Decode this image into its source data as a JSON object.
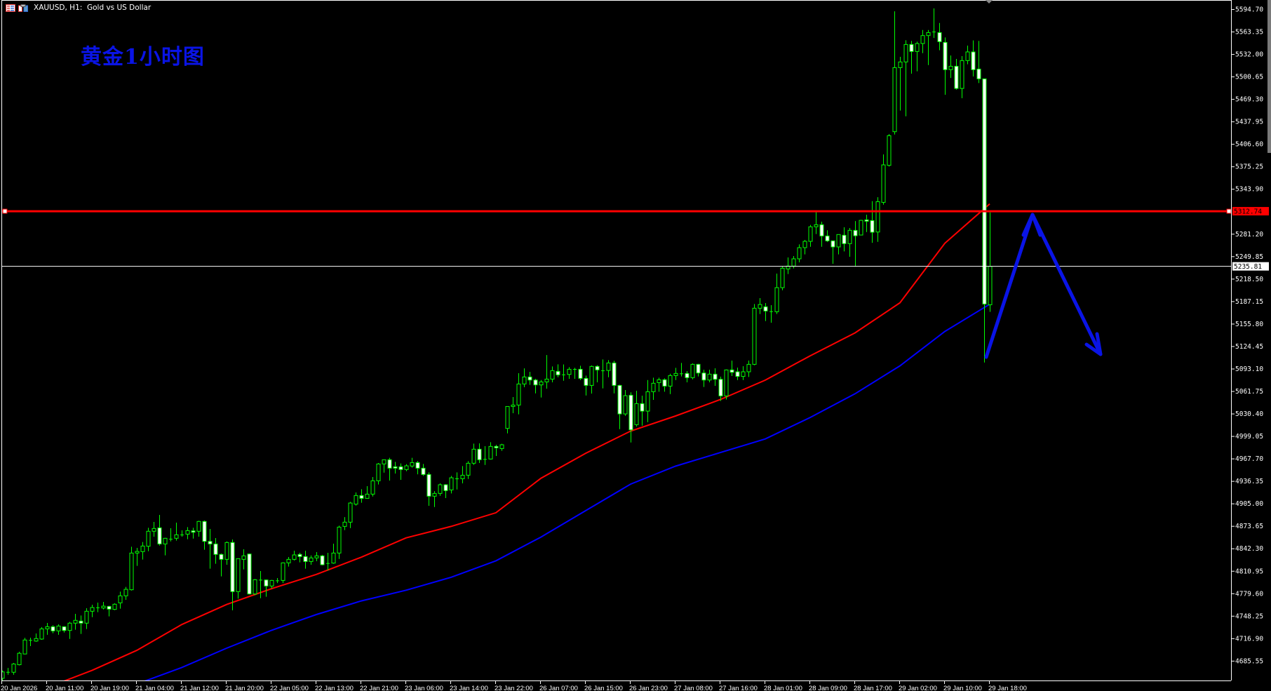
{
  "header": {
    "title": "XAUUSD, H1:  Gold vs US Dollar",
    "icons": [
      "chart-list-icon",
      "chart-window-icon"
    ]
  },
  "annotation": {
    "text": "黄金1小时图",
    "color": "#0a14e6"
  },
  "colors": {
    "background": "#000000",
    "candle_outline": "#00ff00",
    "bull_fill": "#000000",
    "bear_fill": "#ffffff",
    "ma_fast": "#ff0000",
    "ma_slow": "#0000ff",
    "hline": "#ff0000",
    "bid_line": "#ffffff",
    "drawing": "#0a14e6"
  },
  "price_axis": {
    "labels": [
      "5594.70",
      "5563.35",
      "5532.00",
      "5500.65",
      "5469.30",
      "5437.95",
      "5406.60",
      "5375.25",
      "5343.90",
      "5312.74",
      "5281.20",
      "5249.85",
      "5235.81",
      "5218.50",
      "5187.15",
      "5155.80",
      "5124.45",
      "5093.10",
      "5061.75",
      "5030.40",
      "4999.05",
      "4967.70",
      "4936.35",
      "4905.00",
      "4873.65",
      "4842.30",
      "4810.95",
      "4779.60",
      "4748.25",
      "4716.90",
      "4685.55"
    ],
    "hline_label": "5312.74",
    "bid_label": "5235.81"
  },
  "chart_data": {
    "type": "candlestick",
    "title": "",
    "symbol": "XAUUSD",
    "timeframe": "H1",
    "ylim": [
      4654,
      5608
    ],
    "y_ticks": [
      5594.7,
      5563.35,
      5532.0,
      5500.65,
      5469.3,
      5437.95,
      5406.6,
      5375.25,
      5343.9,
      5312.55,
      5281.2,
      5249.85,
      5218.5,
      5187.15,
      5155.8,
      5124.45,
      5093.1,
      5061.75,
      5030.4,
      4999.05,
      4967.7,
      4936.35,
      4905.0,
      4873.65,
      4842.3,
      4810.95,
      4779.6,
      4748.25,
      4716.9,
      4685.55
    ],
    "x_tick_labels": [
      "20 Jan 2026",
      "20 Jan 11:00",
      "20 Jan 19:00",
      "21 Jan 04:00",
      "21 Jan 12:00",
      "21 Jan 20:00",
      "22 Jan 05:00",
      "22 Jan 13:00",
      "22 Jan 21:00",
      "23 Jan 06:00",
      "23 Jan 14:00",
      "23 Jan 22:00",
      "26 Jan 07:00",
      "26 Jan 15:00",
      "26 Jan 23:00",
      "27 Jan 08:00",
      "27 Jan 16:00",
      "28 Jan 01:00",
      "28 Jan 09:00",
      "28 Jan 17:00",
      "29 Jan 02:00",
      "29 Jan 10:00",
      "29 Jan 18:00"
    ],
    "bars_per_x_tick": 8,
    "ohlc_fields": [
      "open",
      "high",
      "low",
      "close"
    ],
    "ohlc": [
      [
        4661,
        4672,
        4658,
        4670
      ],
      [
        4670,
        4675.5,
        4666,
        4670
      ],
      [
        4669.5,
        4682.5,
        4666,
        4681
      ],
      [
        4680,
        4698,
        4679,
        4696
      ],
      [
        4695,
        4717.5,
        4694.5,
        4714.5
      ],
      [
        4714,
        4717.7,
        4706,
        4714.5
      ],
      [
        4713,
        4723.6,
        4712,
        4716.5
      ],
      [
        4715.8,
        4732.5,
        4714.8,
        4730
      ],
      [
        4730,
        4738.3,
        4721.7,
        4733
      ],
      [
        4733,
        4735,
        4724,
        4727.2
      ],
      [
        4727.2,
        4736.3,
        4721.7,
        4734
      ],
      [
        4733,
        4733.7,
        4724.9,
        4727.8
      ],
      [
        4727.8,
        4739.7,
        4716,
        4738
      ],
      [
        4738,
        4751,
        4728.8,
        4741.9
      ],
      [
        4740.9,
        4748.7,
        4723,
        4738
      ],
      [
        4738,
        4758.8,
        4729.8,
        4754.6
      ],
      [
        4754.6,
        4763.7,
        4746.4,
        4759.8
      ],
      [
        4759.5,
        4766.6,
        4753.3,
        4760
      ],
      [
        4759.1,
        4767.6,
        4757.2,
        4761.7
      ],
      [
        4761.4,
        4762,
        4747.4,
        4757.5
      ],
      [
        4757.2,
        4765.7,
        4756.2,
        4764.4
      ],
      [
        4766.3,
        4782,
        4758.2,
        4776.1
      ],
      [
        4776.1,
        4788.5,
        4770.6,
        4785.2
      ],
      [
        4784.6,
        4844.6,
        4783.6,
        4835.8
      ],
      [
        4835.8,
        4843,
        4817.9,
        4838.1
      ],
      [
        4837.8,
        4851.2,
        4826.7,
        4845.6
      ],
      [
        4845.3,
        4871,
        4838.4,
        4866.2
      ],
      [
        4866.2,
        4879.2,
        4858.7,
        4870.1
      ],
      [
        4871,
        4889,
        4846.3,
        4848.5
      ],
      [
        4848.5,
        4857,
        4832.6,
        4856.4
      ],
      [
        4855.7,
        4870.4,
        4852.1,
        4855.7
      ],
      [
        4856.4,
        4878.2,
        4853.1,
        4861.3
      ],
      [
        4861.6,
        4867.5,
        4858.7,
        4861.6
      ],
      [
        4862.2,
        4872,
        4855.1,
        4867.1
      ],
      [
        4866.8,
        4871,
        4856,
        4864.8
      ],
      [
        4866.2,
        4880.8,
        4858.7,
        4879.9
      ],
      [
        4879.9,
        4881.2,
        4840.4,
        4852.1
      ],
      [
        4852.1,
        4869.4,
        4814,
        4848.5
      ],
      [
        4848.5,
        4856.7,
        4820.8,
        4833.9
      ],
      [
        4833.9,
        4835.2,
        4803.2,
        4827
      ],
      [
        4827,
        4852.1,
        4819.5,
        4850.5
      ],
      [
        4850.5,
        4854.7,
        4755.9,
        4782
      ],
      [
        4782,
        4828.3,
        4772.2,
        4828
      ],
      [
        4827,
        4841,
        4813,
        4831.9
      ],
      [
        4834.5,
        4835.2,
        4778,
        4778.7
      ],
      [
        4778.7,
        4799.6,
        4777.1,
        4798.6
      ],
      [
        4798.6,
        4810.7,
        4772.8,
        4798.6
      ],
      [
        4798.3,
        4799,
        4774.8,
        4789.8
      ],
      [
        4789.8,
        4798.3,
        4786.2,
        4797.6
      ],
      [
        4797.6,
        4800.9,
        4794,
        4797.6
      ],
      [
        4797.6,
        4822.8,
        4794,
        4822.1
      ],
      [
        4822.1,
        4830.3,
        4816.9,
        4827
      ],
      [
        4827,
        4839.1,
        4825.4,
        4833.2
      ],
      [
        4833.9,
        4836.1,
        4822.8,
        4830.9
      ],
      [
        4830.9,
        4839.1,
        4814,
        4824
      ],
      [
        4824,
        4832.5,
        4819.5,
        4829
      ],
      [
        4829,
        4837.1,
        4824.4,
        4831.9
      ],
      [
        4831.9,
        4833.2,
        4818.8,
        4819.5
      ],
      [
        4821.8,
        4836.1,
        4811.3,
        4821.8
      ],
      [
        4821.8,
        4848.9,
        4820.8,
        4835.8
      ],
      [
        4835.8,
        4874,
        4827.6,
        4872
      ],
      [
        4873,
        4886,
        4867.8,
        4878.9
      ],
      [
        4878.9,
        4907.2,
        4870.7,
        4905.6
      ],
      [
        4904,
        4920.3,
        4902,
        4916.1
      ],
      [
        4916.1,
        4924.9,
        4906,
        4912.1
      ],
      [
        4912.1,
        4929.1,
        4911.5,
        4918
      ],
      [
        4918,
        4941.8,
        4914.7,
        4936.6
      ],
      [
        4936.6,
        4961.4,
        4931.4,
        4960.1
      ],
      [
        4960.1,
        4966,
        4948,
        4966
      ],
      [
        4966,
        4968.6,
        4937,
        4954.2
      ],
      [
        4956.2,
        4963,
        4946.7,
        4954.2
      ],
      [
        4956.2,
        4960.8,
        4937.9,
        4952.3
      ],
      [
        4952.3,
        4959.8,
        4950,
        4957.5
      ],
      [
        4957.2,
        4968.6,
        4954.9,
        4962
      ],
      [
        4962,
        4964.3,
        4945.7,
        4954.2
      ],
      [
        4954.2,
        4960.1,
        4943.5,
        4945.4
      ],
      [
        4945.4,
        4948.4,
        4901.7,
        4915.1
      ],
      [
        4915.1,
        4922.2,
        4900,
        4919
      ],
      [
        4919,
        4933,
        4915.7,
        4931.1
      ],
      [
        4931.1,
        4932,
        4912.5,
        4922.9
      ],
      [
        4923.9,
        4943.5,
        4919,
        4940.8
      ],
      [
        4939.9,
        4948.4,
        4924.5,
        4939.9
      ],
      [
        4939.5,
        4957.2,
        4933,
        4944.4
      ],
      [
        4944.4,
        4964,
        4939.2,
        4961.1
      ],
      [
        4961.1,
        4988.5,
        4958.8,
        4980.7
      ],
      [
        4980.7,
        4988.8,
        4961.4,
        4966
      ],
      [
        4967,
        4984.9,
        4958.8,
        4967
      ],
      [
        4967,
        4990.4,
        4966.3,
        4984.6
      ],
      [
        4984.6,
        4986.9,
        4971.2,
        4982.6
      ],
      [
        4981.6,
        4988.2,
        4978.4,
        4986.9
      ],
      [
        5009.7,
        5040.3,
        5002.8,
        5040.3
      ],
      [
        5040.3,
        5053.4,
        5030.9,
        5042.3
      ],
      [
        5042.3,
        5086.7,
        5029.3,
        5071.7
      ],
      [
        5071.7,
        5093.5,
        5067.1,
        5081.5
      ],
      [
        5081.5,
        5088.6,
        5070.4,
        5077.2
      ],
      [
        5077.2,
        5078.9,
        5058.6,
        5070.4
      ],
      [
        5070.4,
        5077.2,
        5052.8,
        5074.6
      ],
      [
        5074.6,
        5112.1,
        5065.2,
        5078.5
      ],
      [
        5078.5,
        5096.2,
        5074,
        5090.3
      ],
      [
        5089.3,
        5099.1,
        5081.1,
        5084.4
      ],
      [
        5085,
        5099,
        5076.2,
        5085
      ],
      [
        5085,
        5095.2,
        5078.9,
        5092.2
      ],
      [
        5092.6,
        5094.2,
        5078.9,
        5092.6
      ],
      [
        5092.2,
        5097.1,
        5077.2,
        5079.5
      ],
      [
        5079.5,
        5083.4,
        5055.7,
        5069.7
      ],
      [
        5069.7,
        5097.5,
        5058.3,
        5096.2
      ],
      [
        5096.2,
        5097.8,
        5074,
        5091.3
      ],
      [
        5090.6,
        5105.9,
        5065.5,
        5090.6
      ],
      [
        5090.6,
        5105,
        5081.1,
        5101
      ],
      [
        5101,
        5104,
        5058.6,
        5069.7
      ],
      [
        5069.7,
        5070.4,
        5008.7,
        5029.9
      ],
      [
        5029.9,
        5063.2,
        5027.3,
        5055.4
      ],
      [
        5056,
        5060,
        4990.1,
        5007.7
      ],
      [
        5014.9,
        5062.2,
        5012.3,
        5044.3
      ],
      [
        5044.3,
        5055.4,
        5013.6,
        5033.8
      ],
      [
        5033.8,
        5077.2,
        5018.5,
        5060.9
      ],
      [
        5060.9,
        5080.5,
        5049.5,
        5072.7
      ],
      [
        5073.6,
        5080.5,
        5060.9,
        5077.6
      ],
      [
        5077.6,
        5079.5,
        5060.9,
        5068.7
      ],
      [
        5068.7,
        5086,
        5057.6,
        5083.4
      ],
      [
        5083.4,
        5094.2,
        5077.2,
        5086.4
      ],
      [
        5086.4,
        5101,
        5082.2,
        5086.4
      ],
      [
        5086.4,
        5089.6,
        5074,
        5080.5
      ],
      [
        5080.5,
        5100.4,
        5078.2,
        5099.1
      ],
      [
        5099.1,
        5099.8,
        5082.2,
        5087
      ],
      [
        5087,
        5091.6,
        5067.5,
        5077.2
      ],
      [
        5077.2,
        5091.6,
        5074,
        5085.4
      ],
      [
        5085.4,
        5093.6,
        5069.1,
        5078.2
      ],
      [
        5078.2,
        5082,
        5048,
        5055
      ],
      [
        5055,
        5092,
        5050,
        5091.3
      ],
      [
        5091.3,
        5104.3,
        5082.8,
        5088
      ],
      [
        5088.7,
        5094.6,
        5077.2,
        5082.2
      ],
      [
        5082.2,
        5096.5,
        5077.2,
        5088.7
      ],
      [
        5088.7,
        5104.3,
        5081.5,
        5099.1
      ],
      [
        5099.1,
        5183.3,
        5097.8,
        5177.4
      ],
      [
        5177.4,
        5191.4,
        5169.3,
        5182.6
      ],
      [
        5179.4,
        5184.6,
        5159.5,
        5173.5
      ],
      [
        5173.2,
        5181.7,
        5157.2,
        5173.2
      ],
      [
        5172.5,
        5225.7,
        5169.3,
        5206.1
      ],
      [
        5206.1,
        5235.5,
        5202.5,
        5233.2
      ],
      [
        5232.2,
        5248.2,
        5225.1,
        5236.2
      ],
      [
        5236.2,
        5250.2,
        5232.9,
        5246.3
      ],
      [
        5246.3,
        5266.5,
        5241.4,
        5261.9
      ],
      [
        5261.9,
        5272.7,
        5252.5,
        5270.7
      ],
      [
        5270.7,
        5293.6,
        5263.2,
        5291
      ],
      [
        5291,
        5311.9,
        5280.9,
        5293.9
      ],
      [
        5293.9,
        5298.1,
        5263.2,
        5278.2
      ],
      [
        5278.2,
        5286.1,
        5269.8,
        5271.4
      ],
      [
        5271.4,
        5271.4,
        5239.4,
        5262.9
      ],
      [
        5262.9,
        5280.2,
        5252.5,
        5280.2
      ],
      [
        5279.2,
        5290.3,
        5256.7,
        5267.5
      ],
      [
        5267.5,
        5289.3,
        5249.2,
        5286.1
      ],
      [
        5286,
        5299,
        5236,
        5278.5
      ],
      [
        5279.5,
        5300.7,
        5279,
        5300
      ],
      [
        5300.7,
        5307.8,
        5283.7,
        5298.7
      ],
      [
        5299.7,
        5326.8,
        5268.7,
        5283.4
      ],
      [
        5283.7,
        5332.3,
        5270,
        5326.1
      ],
      [
        5325.1,
        5392,
        5321.9,
        5377.4
      ],
      [
        5376.7,
        5420.4,
        5375.1,
        5418.1
      ],
      [
        5423.7,
        5591.7,
        5419.8,
        5513.1
      ],
      [
        5513.1,
        5528.1,
        5453.1,
        5521
      ],
      [
        5521,
        5551.3,
        5445.2,
        5545.4
      ],
      [
        5545.4,
        5550.3,
        5504.6,
        5535.6
      ],
      [
        5535.6,
        5549.3,
        5507.9,
        5546.7
      ],
      [
        5546.7,
        5565.6,
        5533.3,
        5557.8
      ],
      [
        5557.8,
        5565.6,
        5516.7,
        5562
      ],
      [
        5563.3,
        5595.7,
        5554.5,
        5563.3
      ],
      [
        5562,
        5575.4,
        5537.3,
        5549.3
      ],
      [
        5548.3,
        5555.2,
        5475.2,
        5510.2
      ],
      [
        5510.2,
        5530,
        5498.7,
        5515
      ],
      [
        5515,
        5525.2,
        5482.4,
        5484
      ],
      [
        5484,
        5529.1,
        5470.4,
        5522.9
      ],
      [
        5522.9,
        5543.8,
        5517.7,
        5535
      ],
      [
        5535,
        5551,
        5500.7,
        5510.2
      ],
      [
        5511.1,
        5550.3,
        5491.6,
        5497.4
      ],
      [
        5497.4,
        5497.4,
        5101.6,
        5183.2
      ],
      [
        5182.2,
        5311.1,
        5172.4,
        5235.81
      ]
    ],
    "moving_averages": [
      {
        "color": "#ff0000",
        "values_at_x_ticks": [
          4622,
          4648,
          4672,
          4700,
          4736,
          4764,
          4786,
          4806,
          4830,
          4857,
          4873,
          4892,
          4940,
          4975,
          5006,
          5027,
          5050,
          5077,
          5111,
          5143,
          5185,
          5268,
          5323
        ]
      },
      {
        "color": "#0000ff",
        "values_at_x_ticks": [
          4600,
          4620,
          4638,
          4653,
          4676,
          4703,
          4728,
          4750,
          4769,
          4784,
          4802,
          4825,
          4858,
          4895,
          4932,
          4957,
          4976,
          4995,
          5025,
          5058,
          5097,
          5145,
          5183
        ]
      }
    ],
    "horizontal_lines": [
      {
        "price": 5312.74,
        "color": "#ff0000",
        "label": "5312.74"
      },
      {
        "price": 5235.81,
        "color": "#ffffff",
        "label": "5235.81"
      }
    ],
    "drawings": [
      {
        "type": "arrow-path",
        "color": "#0a14e6",
        "meaning": "up then down"
      }
    ],
    "grid": false,
    "legend": "none"
  }
}
